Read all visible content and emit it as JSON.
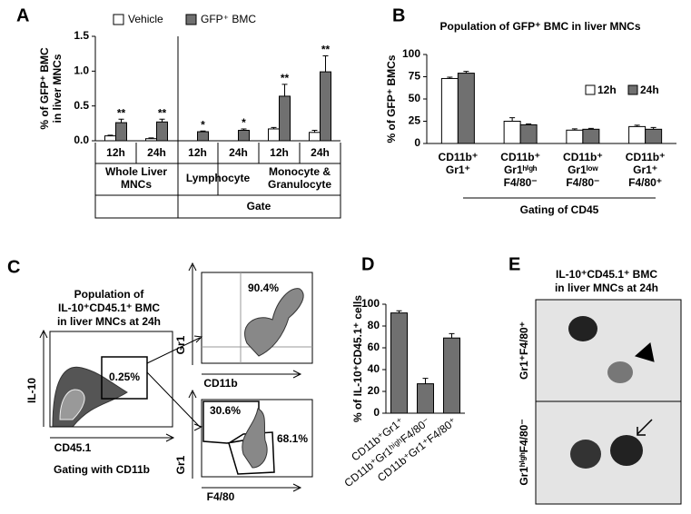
{
  "chart_data": [
    {
      "type": "bar",
      "panel": "A",
      "ylabel": [
        "% of GFP⁺ BMC",
        "in liver MNCs"
      ],
      "categories": [
        "12h",
        "24h",
        "12h",
        "24h",
        "12h",
        "24h"
      ],
      "groups": [
        [
          "Whole Liver",
          "MNCs"
        ],
        [
          "Lymphocyte"
        ],
        [
          "Monocyte &",
          "Granulocyte"
        ]
      ],
      "gate": "Gate",
      "series": [
        {
          "name": "Vehicle",
          "color": "#ffffff",
          "values": [
            0.07,
            0.03,
            0.0,
            0.0,
            0.17,
            0.12
          ],
          "errors": [
            0.01,
            0.01,
            0.0,
            0.0,
            0.02,
            0.03
          ]
        },
        {
          "name": "GFP⁺ BMC",
          "color": "#707070",
          "values": [
            0.26,
            0.27,
            0.13,
            0.15,
            0.64,
            0.99
          ],
          "errors": [
            0.05,
            0.04,
            0.01,
            0.02,
            0.17,
            0.23
          ]
        }
      ],
      "annotations": [
        "**",
        "**",
        "*",
        "*",
        "**",
        "**"
      ],
      "ylim": [
        0,
        1.5
      ],
      "yticks": [
        {
          "value": 0,
          "label": "0.0"
        },
        0.5,
        {
          "value": 1,
          "label": "1.0"
        },
        1.5
      ]
    },
    {
      "type": "bar",
      "panel": "B",
      "title": "Population of GFP⁺ BMC in liver MNCs",
      "ylabel": "% of GFP⁺ BMCs",
      "categories": [
        [
          "CD11b⁺",
          "Gr1⁺"
        ],
        [
          "CD11b⁺",
          "Gr1ʰⁱᵍʰ",
          "F4/80⁻"
        ],
        [
          "CD11b⁺",
          "Gr1ˡᵒʷ",
          "F4/80⁻"
        ],
        [
          "CD11b⁺",
          "Gr1⁺",
          "F4/80⁺"
        ]
      ],
      "xlabel": "Gating of CD45",
      "series": [
        {
          "name": "12h",
          "color": "#ffffff",
          "values": [
            73,
            25,
            15,
            19
          ],
          "errors": [
            1.5,
            4,
            1.5,
            1.5
          ]
        },
        {
          "name": "24h",
          "color": "#707070",
          "values": [
            79,
            21,
            16,
            16
          ],
          "errors": [
            2,
            1,
            1,
            2
          ]
        }
      ],
      "ylim": [
        0,
        100
      ],
      "yticks": [
        0,
        25,
        50,
        75,
        100
      ]
    },
    {
      "type": "bar",
      "panel": "D",
      "ylabel": "% of IL-10⁺CD45.1⁺ cells",
      "categories": [
        "CD11b⁺Gr1⁺",
        "CD11b⁺Gr1ʰⁱᵍʰF4/80⁻",
        "CD11b⁺Gr1⁺F4/80⁺"
      ],
      "values": [
        92,
        27,
        69
      ],
      "errors": [
        2,
        5,
        4
      ],
      "color": "#707070",
      "ylim": [
        0,
        100
      ],
      "yticks": [
        0,
        20,
        40,
        60,
        80,
        100
      ]
    }
  ],
  "flow": {
    "panel": "C",
    "title": [
      "Population of",
      "IL-10⁺CD45.1⁺ BMC",
      "in liver MNCs at 24h"
    ],
    "gate_value": "0.25%",
    "y_axis": "IL-10",
    "x_axis": "CD45.1",
    "gating": "Gating  with CD11b",
    "top": {
      "value": "90.4%",
      "y_axis": "Gr1",
      "x_axis": "CD11b"
    },
    "bottom": {
      "upper_value": "30.6%",
      "lower_value": "68.1%",
      "y_axis": "Gr1",
      "x_axis": "F4/80"
    }
  },
  "micrograph": {
    "panel": "E",
    "title": [
      "IL-10⁺CD45.1⁺ BMC",
      "in liver MNCs at 24h"
    ],
    "rows": [
      "Gr1⁺F4/80⁺",
      "Gr1ʰⁱᵍʰF4/80⁻"
    ]
  }
}
